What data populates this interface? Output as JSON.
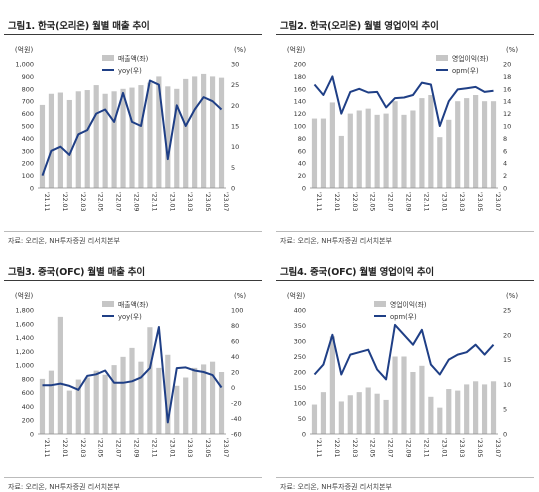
{
  "panels": [
    {
      "title": "그림1. 한국(오리온) 월별 매출 추이",
      "source": "자료: 오리온, NH투자증권 리서치본부",
      "chart_data": {
        "type": "bar",
        "left_unit": "(억원)",
        "right_unit": "(%)",
        "x": [
          "'21.11",
          "'21.12",
          "'22.01",
          "'22.02",
          "'22.03",
          "'22.04",
          "'22.05",
          "'22.06",
          "'22.07",
          "'22.08",
          "'22.09",
          "'22.10",
          "'22.11",
          "'22.12",
          "'23.01",
          "'23.02",
          "'23.03",
          "'23.04",
          "'23.05",
          "'23.06",
          "'23.07"
        ],
        "tick_labels": [
          "'21.11",
          "'22.01",
          "'22.03",
          "'22.05",
          "'22.07",
          "'22.09",
          "'22.11",
          "'23.01",
          "'23.03",
          "'23.05",
          "'23.07"
        ],
        "series": [
          {
            "name": "매출액(좌)",
            "kind": "bar",
            "axis": "left",
            "values": [
              670,
              760,
              770,
              710,
              780,
              790,
              830,
              760,
              780,
              800,
              810,
              830,
              850,
              900,
              820,
              800,
              880,
              900,
              920,
              900,
              890
            ]
          },
          {
            "name": "yoy(우)",
            "kind": "line",
            "axis": "right",
            "values": [
              3,
              9,
              10,
              8,
              13,
              14,
              18,
              19,
              16,
              23,
              16,
              15,
              26,
              25,
              7,
              20,
              15,
              19,
              22,
              21,
              19
            ]
          }
        ],
        "ylim_left": [
          0,
          1000
        ],
        "yticks_left": [
          0,
          100,
          200,
          300,
          400,
          500,
          600,
          700,
          800,
          900,
          1000
        ],
        "ylim_right": [
          0,
          30
        ],
        "yticks_right": [
          0,
          5,
          10,
          15,
          20,
          25,
          30
        ],
        "legend_position": "top-center",
        "colors": {
          "bar": "#c6c6c6",
          "line": "#1f3f86"
        }
      }
    },
    {
      "title": "그림2. 한국(오리온) 월별 영업이익 추이",
      "source": "자료: 오리온, NH투자증권 리서치본부",
      "chart_data": {
        "type": "bar",
        "left_unit": "(억원)",
        "right_unit": "(%)",
        "x": [
          "'21.11",
          "'21.12",
          "'22.01",
          "'22.02",
          "'22.03",
          "'22.04",
          "'22.05",
          "'22.06",
          "'22.07",
          "'22.08",
          "'22.09",
          "'22.10",
          "'22.11",
          "'22.12",
          "'23.01",
          "'23.02",
          "'23.03",
          "'23.04",
          "'23.05",
          "'23.06",
          "'23.07"
        ],
        "tick_labels": [
          "'21.11",
          "'22.01",
          "'22.03",
          "'22.05",
          "'22.07",
          "'22.09",
          "'22.11",
          "'23.01",
          "'23.03",
          "'23.05",
          "'23.07"
        ],
        "series": [
          {
            "name": "영업이익(좌)",
            "kind": "bar",
            "axis": "left",
            "values": [
              112,
              112,
              138,
              84,
              120,
              125,
              128,
              118,
              120,
              140,
              118,
              125,
              145,
              150,
              82,
              110,
              140,
              145,
              150,
              140,
              140
            ]
          },
          {
            "name": "opm(우)",
            "kind": "line",
            "axis": "right",
            "values": [
              16.7,
              15.0,
              18.0,
              12.0,
              15.5,
              16.0,
              15.4,
              15.5,
              13.0,
              14.5,
              14.6,
              15.0,
              17.0,
              16.7,
              10.0,
              14.0,
              15.9,
              16.1,
              16.3,
              15.5,
              15.7
            ]
          }
        ],
        "ylim_left": [
          0,
          200
        ],
        "yticks_left": [
          0,
          20,
          40,
          60,
          80,
          100,
          120,
          140,
          160,
          180,
          200
        ],
        "ylim_right": [
          0,
          20
        ],
        "yticks_right": [
          0,
          2,
          4,
          6,
          8,
          10,
          12,
          14,
          16,
          18,
          20
        ],
        "legend_position": "top-right",
        "colors": {
          "bar": "#c6c6c6",
          "line": "#1f3f86"
        }
      }
    },
    {
      "title": "그림3. 중국(OFC) 월별 매출 추이",
      "source": "자료: 오리온, NH투자증권 리서치본부",
      "chart_data": {
        "type": "bar",
        "left_unit": "(억원)",
        "right_unit": "(%)",
        "x": [
          "'21.11",
          "'21.12",
          "'22.01",
          "'22.02",
          "'22.03",
          "'22.04",
          "'22.05",
          "'22.06",
          "'22.07",
          "'22.08",
          "'22.09",
          "'22.10",
          "'22.11",
          "'22.12",
          "'23.01",
          "'23.02",
          "'23.03",
          "'23.04",
          "'23.05",
          "'23.06",
          "'23.07"
        ],
        "tick_labels": [
          "'21.11",
          "'22.01",
          "'22.03",
          "'22.05",
          "'22.07",
          "'22.09",
          "'22.11",
          "'23.01",
          "'23.03",
          "'23.05",
          "'23.07"
        ],
        "series": [
          {
            "name": "매출액(좌)",
            "kind": "bar",
            "axis": "left",
            "values": [
              800,
              920,
              1700,
              630,
              790,
              820,
              920,
              860,
              1000,
              1120,
              1250,
              1050,
              1550,
              960,
              1150,
              700,
              820,
              960,
              1010,
              1050,
              900
            ]
          },
          {
            "name": "yoy(우)",
            "kind": "line",
            "axis": "right",
            "values": [
              3,
              3,
              5,
              2,
              -3,
              15,
              17,
              22,
              6,
              6,
              8,
              13,
              25,
              78,
              -45,
              25,
              26,
              22,
              20,
              16,
              0
            ]
          }
        ],
        "ylim_left": [
          0,
          1800
        ],
        "yticks_left": [
          0,
          200,
          400,
          600,
          800,
          1000,
          1200,
          1400,
          1600,
          1800
        ],
        "ylim_right": [
          -60,
          100
        ],
        "yticks_right": [
          -60,
          -40,
          -20,
          0,
          20,
          40,
          60,
          80,
          100
        ],
        "legend_position": "top-center",
        "colors": {
          "bar": "#c6c6c6",
          "line": "#1f3f86"
        }
      }
    },
    {
      "title": "그림4. 중국(OFC) 월별 영업이익 추이",
      "source": "자료: 오리온, NH투자증권 리서치본부",
      "chart_data": {
        "type": "bar",
        "left_unit": "(억원)",
        "right_unit": "(%)",
        "x": [
          "'21.11",
          "'21.12",
          "'22.01",
          "'22.02",
          "'22.03",
          "'22.04",
          "'22.05",
          "'22.06",
          "'22.07",
          "'22.08",
          "'22.09",
          "'22.10",
          "'22.11",
          "'22.12",
          "'23.01",
          "'23.02",
          "'23.03",
          "'23.04",
          "'23.05",
          "'23.06",
          "'23.07"
        ],
        "tick_labels": [
          "'21.11",
          "'22.01",
          "'22.03",
          "'22.05",
          "'22.07",
          "'22.09",
          "'22.11",
          "'23.01",
          "'23.03",
          "'23.05",
          "'23.07"
        ],
        "series": [
          {
            "name": "영업이익(좌)",
            "kind": "bar",
            "axis": "left",
            "values": [
              95,
              135,
              315,
              105,
              125,
              135,
              150,
              130,
              110,
              250,
              250,
              200,
              220,
              120,
              85,
              145,
              140,
              160,
              170,
              160,
              170
            ]
          },
          {
            "name": "opm(우)",
            "kind": "line",
            "axis": "right",
            "values": [
              12,
              14,
              20,
              12,
              16,
              16.5,
              17,
              13,
              11,
              22,
              20,
              18,
              21,
              14,
              12,
              15,
              16,
              16.5,
              18,
              16,
              18
            ]
          }
        ],
        "ylim_left": [
          0,
          400
        ],
        "yticks_left": [
          0,
          50,
          100,
          150,
          200,
          250,
          300,
          350,
          400
        ],
        "ylim_right": [
          0,
          25
        ],
        "yticks_right": [
          0,
          5,
          10,
          15,
          20,
          25
        ],
        "legend_position": "top-center",
        "colors": {
          "bar": "#c6c6c6",
          "line": "#1f3f86"
        }
      }
    }
  ]
}
